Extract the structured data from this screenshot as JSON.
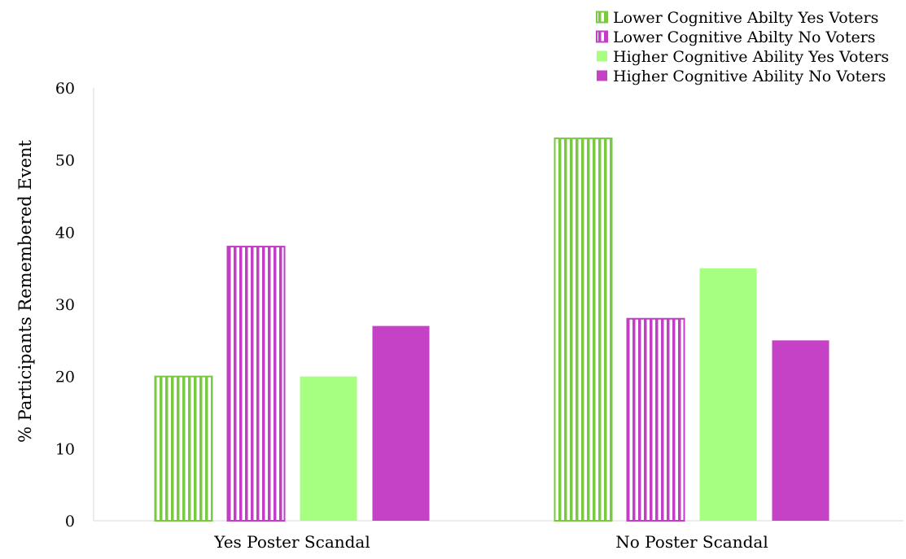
{
  "chart_data": {
    "type": "bar",
    "title": "",
    "xlabel": "",
    "ylabel": "% Participants Remembered Event",
    "ylim": [
      0,
      60
    ],
    "yticks": [
      0,
      10,
      20,
      30,
      40,
      50,
      60
    ],
    "grid": false,
    "legend_position": "top-right",
    "categories": [
      "Yes Poster Scandal",
      "No Poster Scandal"
    ],
    "series": [
      {
        "name": "Lower Cognitive Abilty Yes Voters",
        "values": [
          20,
          53
        ],
        "color": "#7ac943",
        "pattern": "vertical-stripes"
      },
      {
        "name": "Lower Cognitive Abilty No Voters",
        "values": [
          38,
          28
        ],
        "color": "#c13fc4",
        "pattern": "vertical-stripes"
      },
      {
        "name": "Higher Cognitive Ability Yes Voters",
        "values": [
          20,
          35
        ],
        "color": "#a6ff80",
        "pattern": "solid"
      },
      {
        "name": "Higher Cognitive Ability No Voters",
        "values": [
          27,
          25
        ],
        "color": "#c541c6",
        "pattern": "solid"
      }
    ]
  }
}
